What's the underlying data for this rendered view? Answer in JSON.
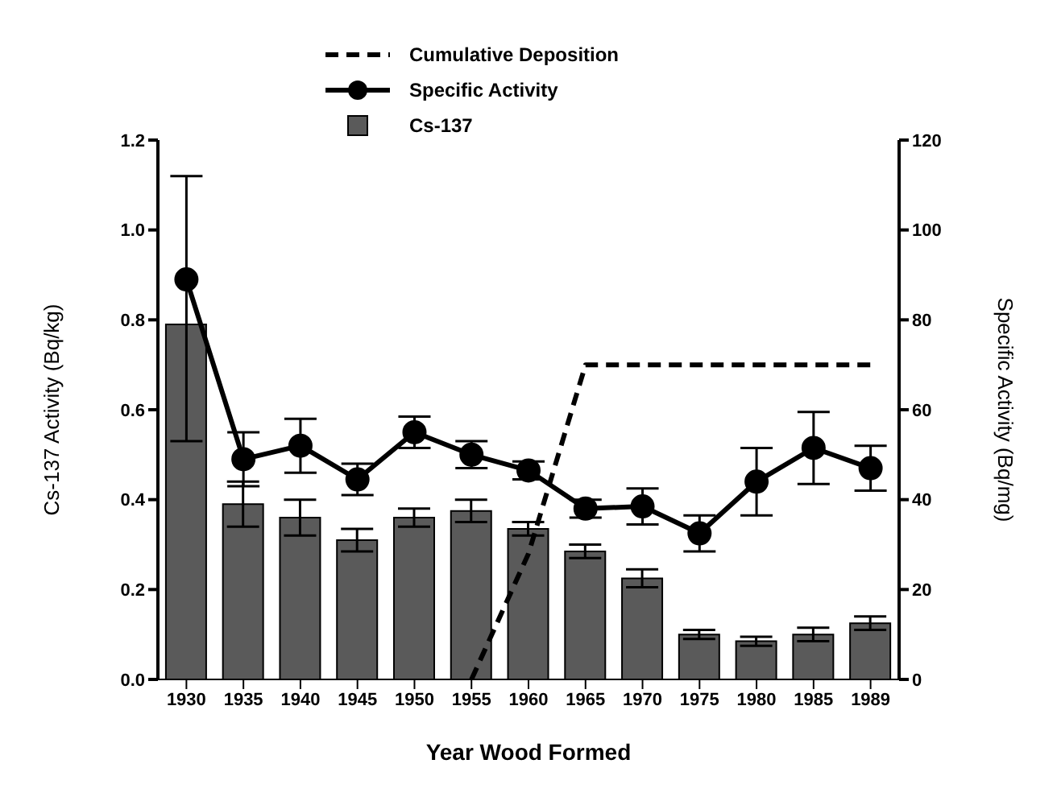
{
  "chart_data": {
    "type": "bar",
    "xlabel": "Year Wood Formed",
    "ylabel": "Cs-137 Activity (Bq/kg)",
    "y2label": "Specific Activity (Bq/mg)",
    "categories": [
      "1930",
      "1935",
      "1940",
      "1945",
      "1950",
      "1955",
      "1960",
      "1965",
      "1970",
      "1975",
      "1980",
      "1985",
      "1989"
    ],
    "series": [
      {
        "name": "Cumulative Deposition",
        "type": "line",
        "axis": "y2",
        "color": "#000000",
        "line_style": "dashed",
        "marker": "none",
        "values": [
          null,
          null,
          null,
          null,
          null,
          0,
          28,
          70,
          70,
          70,
          70,
          70,
          70
        ]
      },
      {
        "name": "Specific Activity",
        "type": "line",
        "axis": "y2",
        "color": "#000000",
        "line_style": "solid",
        "marker": "circle",
        "values": [
          89,
          49,
          52,
          44.5,
          55,
          50,
          46.5,
          38,
          38.5,
          32.5,
          44,
          51.5,
          47
        ],
        "errors": [
          [
            53,
            112
          ],
          6,
          6,
          3.5,
          3.5,
          3,
          2,
          2,
          4,
          4,
          7.5,
          8,
          5
        ]
      },
      {
        "name": "Cs-137",
        "color": "#5a5a5a",
        "values": [
          0.79,
          0.39,
          0.36,
          0.31,
          0.36,
          0.375,
          0.335,
          0.285,
          0.225,
          0.1,
          0.085,
          0.1,
          0.125
        ],
        "errors": [
          null,
          0.05,
          0.04,
          0.025,
          0.02,
          0.025,
          0.015,
          0.015,
          0.02,
          0.01,
          0.01,
          0.015,
          0.015
        ]
      }
    ],
    "ylim": [
      0,
      1.2
    ],
    "yticks": [
      {
        "value": 0,
        "label": "0.0"
      },
      0.2,
      0.4,
      0.6,
      0.8,
      {
        "value": 1,
        "label": "1.0"
      },
      1.2
    ],
    "y2lim": [
      0,
      120
    ],
    "y2ticks": [
      0,
      20,
      40,
      60,
      80,
      100,
      120
    ],
    "legend": "top"
  }
}
